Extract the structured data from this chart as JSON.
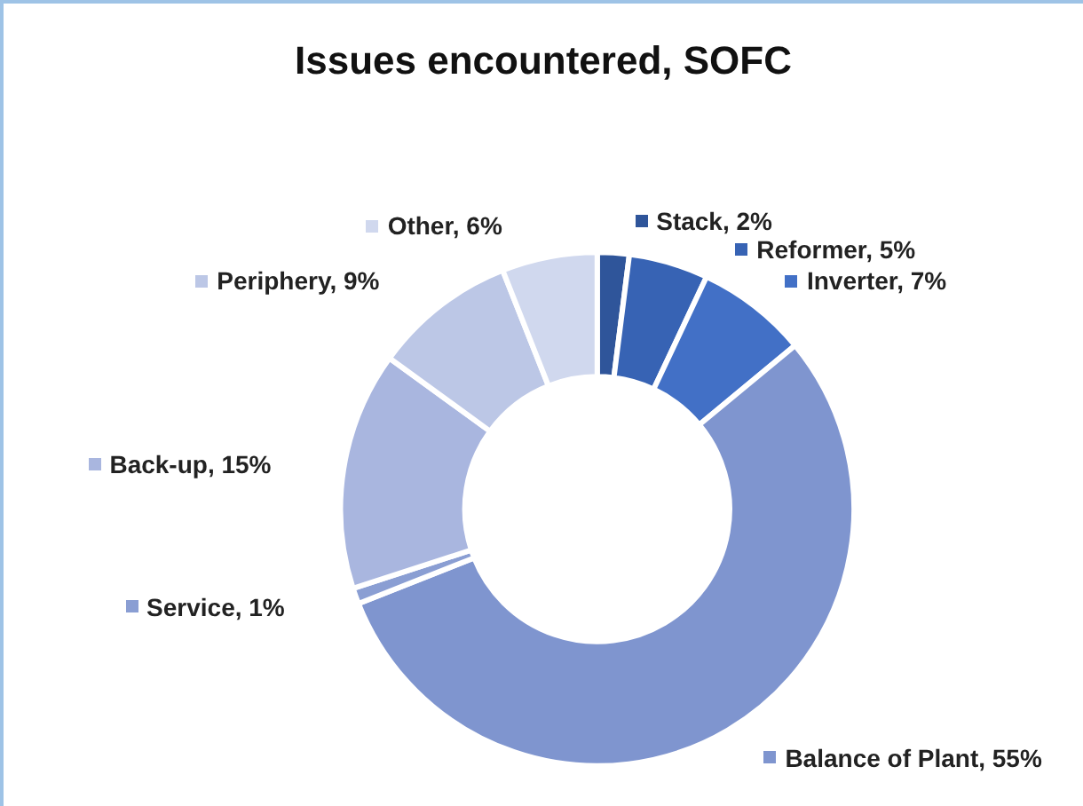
{
  "chart_data": {
    "type": "donut",
    "title": "Issues encountered, SOFC",
    "categories": [
      "Stack",
      "Reformer",
      "Inverter",
      "Balance of Plant",
      "Service",
      "Back-up",
      "Periphery",
      "Other"
    ],
    "values": [
      2,
      5,
      7,
      55,
      1,
      15,
      9,
      6
    ],
    "colors": [
      "#2f559a",
      "#3763b4",
      "#4270c6",
      "#7f95cf",
      "#8a9ed3",
      "#a9b6df",
      "#bcc7e6",
      "#d0d8ee"
    ],
    "legend": "top left",
    "value_labels": [
      "2%",
      "5%",
      "7%",
      "55%",
      "1%",
      "15%",
      "9%",
      "6%"
    ]
  }
}
